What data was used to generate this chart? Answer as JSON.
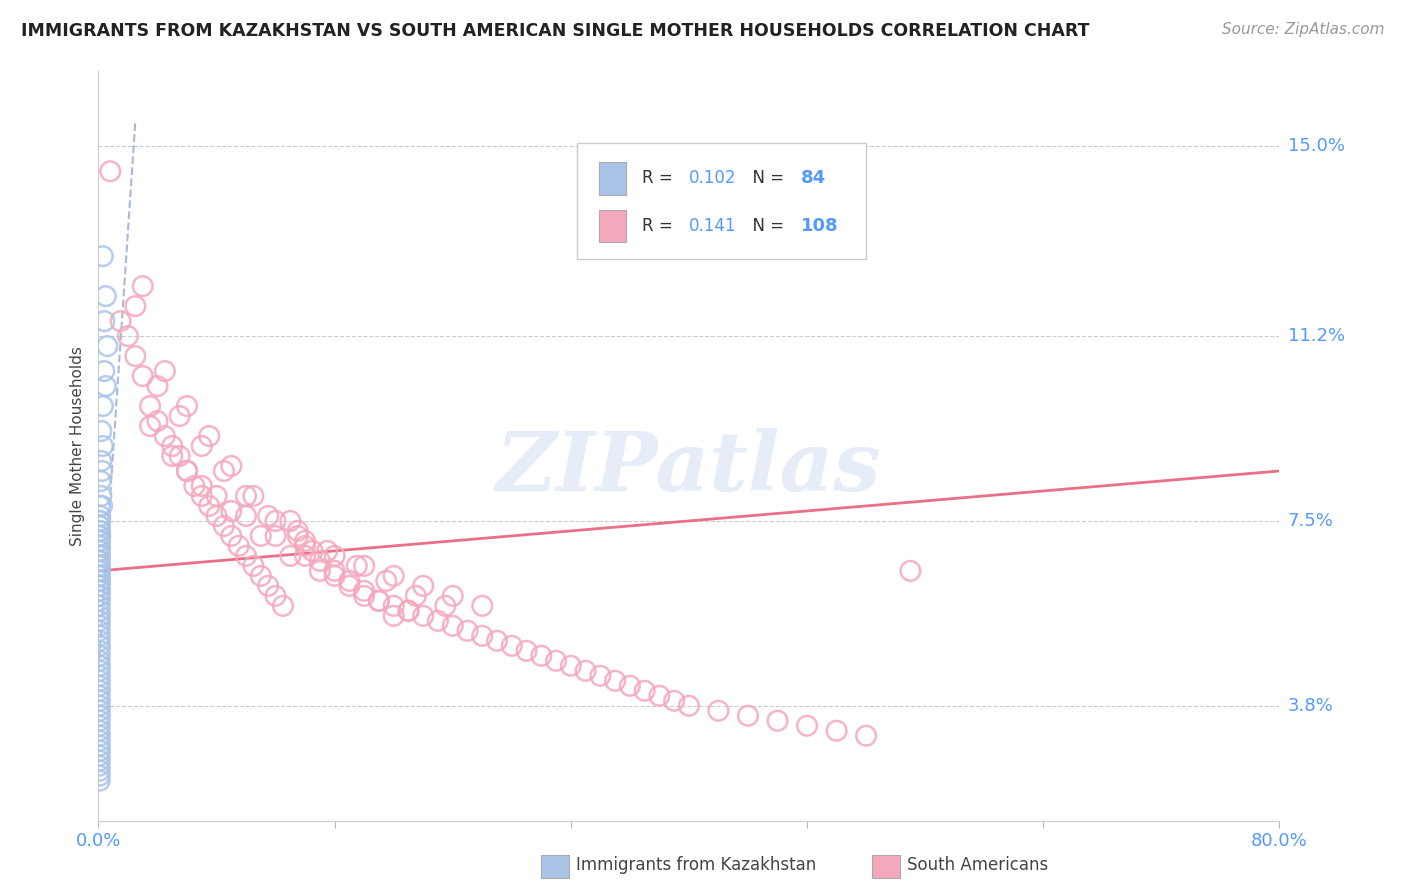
{
  "title": "IMMIGRANTS FROM KAZAKHSTAN VS SOUTH AMERICAN SINGLE MOTHER HOUSEHOLDS CORRELATION CHART",
  "source": "Source: ZipAtlas.com",
  "ylabel": "Single Mother Households",
  "ytick_labels": [
    "3.8%",
    "7.5%",
    "11.2%",
    "15.0%"
  ],
  "ytick_values": [
    3.8,
    7.5,
    11.2,
    15.0
  ],
  "xlim": [
    0.0,
    80.0
  ],
  "ylim": [
    1.5,
    16.5
  ],
  "xtick_positions": [
    0.0,
    16.0,
    32.0,
    48.0,
    64.0,
    80.0
  ],
  "xtick_labels": [
    "0.0%",
    "",
    "",
    "",
    "",
    "80.0%"
  ],
  "legend_blue_R": "0.102",
  "legend_blue_N": "84",
  "legend_pink_R": "0.141",
  "legend_pink_N": "108",
  "legend_label_blue": "Immigrants from Kazakhstan",
  "legend_label_pink": "South Americans",
  "watermark": "ZIPatlas",
  "blue_color": "#aac4e8",
  "pink_color": "#f4a8bc",
  "blue_line_color": "#8899cc",
  "pink_line_color": "#e8607a",
  "blue_scatter_x": [
    0.3,
    0.5,
    0.4,
    0.6,
    0.4,
    0.5,
    0.3,
    0.2,
    0.3,
    0.2,
    0.25,
    0.15,
    0.2,
    0.25,
    0.1,
    0.12,
    0.1,
    0.08,
    0.1,
    0.12,
    0.08,
    0.1,
    0.08,
    0.09,
    0.07,
    0.1,
    0.08,
    0.09,
    0.1,
    0.08,
    0.09,
    0.07,
    0.1,
    0.08,
    0.09,
    0.1,
    0.08,
    0.09,
    0.07,
    0.1,
    0.08,
    0.1,
    0.08,
    0.09,
    0.07,
    0.1,
    0.08,
    0.09,
    0.1,
    0.08,
    0.09,
    0.07,
    0.1,
    0.08,
    0.09,
    0.1,
    0.08,
    0.09,
    0.07,
    0.1,
    0.08,
    0.09,
    0.1,
    0.08,
    0.09,
    0.07,
    0.1,
    0.08,
    0.09,
    0.1,
    0.08,
    0.09,
    0.07,
    0.1,
    0.08,
    0.09,
    0.1,
    0.08,
    0.09,
    0.07,
    0.1,
    0.08,
    0.09,
    0.1,
    0.08
  ],
  "blue_scatter_y": [
    12.8,
    12.0,
    11.5,
    11.0,
    10.5,
    10.2,
    9.8,
    9.3,
    9.0,
    8.7,
    8.5,
    8.3,
    8.0,
    7.8,
    7.8,
    7.6,
    7.5,
    7.4,
    7.3,
    7.2,
    7.1,
    7.0,
    6.9,
    6.8,
    6.7,
    6.6,
    6.5,
    6.4,
    6.3,
    6.2,
    6.1,
    6.0,
    5.9,
    5.8,
    5.7,
    5.6,
    5.5,
    5.4,
    5.3,
    5.2,
    5.1,
    5.0,
    4.9,
    4.8,
    4.7,
    4.6,
    4.5,
    4.4,
    4.3,
    4.2,
    4.1,
    4.0,
    3.9,
    3.8,
    3.7,
    3.6,
    3.5,
    3.4,
    3.3,
    3.2,
    3.1,
    3.0,
    2.9,
    2.8,
    2.7,
    2.6,
    2.5,
    2.4,
    2.3,
    7.5,
    7.4,
    7.3,
    7.2,
    7.1,
    7.0,
    6.9,
    6.8,
    6.7,
    6.6,
    6.5,
    6.4,
    6.3,
    6.2,
    6.1,
    6.0
  ],
  "pink_scatter_x": [
    0.8,
    1.5,
    2.0,
    2.5,
    3.0,
    3.5,
    4.0,
    4.5,
    5.0,
    5.5,
    6.0,
    6.5,
    7.0,
    7.5,
    8.0,
    8.5,
    9.0,
    9.5,
    10.0,
    10.5,
    11.0,
    11.5,
    12.0,
    12.5,
    13.0,
    13.5,
    14.0,
    14.5,
    15.0,
    16.0,
    17.0,
    18.0,
    19.0,
    20.0,
    21.0,
    22.0,
    23.0,
    24.0,
    25.0,
    26.0,
    27.0,
    28.0,
    29.0,
    30.0,
    31.0,
    32.0,
    33.0,
    34.0,
    35.0,
    36.0,
    37.0,
    38.0,
    39.0,
    40.0,
    42.0,
    44.0,
    46.0,
    48.0,
    50.0,
    52.0,
    3.0,
    4.5,
    6.0,
    7.5,
    9.0,
    10.5,
    12.0,
    14.0,
    16.0,
    18.0,
    20.0,
    22.0,
    24.0,
    26.0,
    2.5,
    4.0,
    5.5,
    7.0,
    8.5,
    10.0,
    11.5,
    13.5,
    15.5,
    17.5,
    19.5,
    21.5,
    23.5,
    3.5,
    5.0,
    7.0,
    9.0,
    11.0,
    13.0,
    15.0,
    17.0,
    19.0,
    21.0,
    6.0,
    8.0,
    10.0,
    12.0,
    14.0,
    16.0,
    18.0,
    20.0,
    55.0
  ],
  "pink_scatter_y": [
    14.5,
    11.5,
    11.2,
    10.8,
    10.4,
    9.8,
    9.5,
    9.2,
    9.0,
    8.8,
    8.5,
    8.2,
    8.0,
    7.8,
    7.6,
    7.4,
    7.2,
    7.0,
    6.8,
    6.6,
    6.4,
    6.2,
    6.0,
    5.8,
    7.5,
    7.3,
    7.1,
    6.9,
    6.7,
    6.5,
    6.3,
    6.1,
    5.9,
    5.8,
    5.7,
    5.6,
    5.5,
    5.4,
    5.3,
    5.2,
    5.1,
    5.0,
    4.9,
    4.8,
    4.7,
    4.6,
    4.5,
    4.4,
    4.3,
    4.2,
    4.1,
    4.0,
    3.9,
    3.8,
    3.7,
    3.6,
    3.5,
    3.4,
    3.3,
    3.2,
    12.2,
    10.5,
    9.8,
    9.2,
    8.6,
    8.0,
    7.5,
    7.0,
    6.8,
    6.6,
    6.4,
    6.2,
    6.0,
    5.8,
    11.8,
    10.2,
    9.6,
    9.0,
    8.5,
    8.0,
    7.6,
    7.2,
    6.9,
    6.6,
    6.3,
    6.0,
    5.8,
    9.4,
    8.8,
    8.2,
    7.7,
    7.2,
    6.8,
    6.5,
    6.2,
    5.9,
    5.7,
    8.5,
    8.0,
    7.6,
    7.2,
    6.8,
    6.4,
    6.0,
    5.6,
    6.5
  ],
  "blue_line_start_x": 0.0,
  "blue_line_start_y": 4.5,
  "blue_line_end_x": 2.5,
  "blue_line_end_y": 15.5,
  "pink_line_start_x": 0.0,
  "pink_line_start_y": 6.5,
  "pink_line_end_x": 80.0,
  "pink_line_end_y": 8.5
}
